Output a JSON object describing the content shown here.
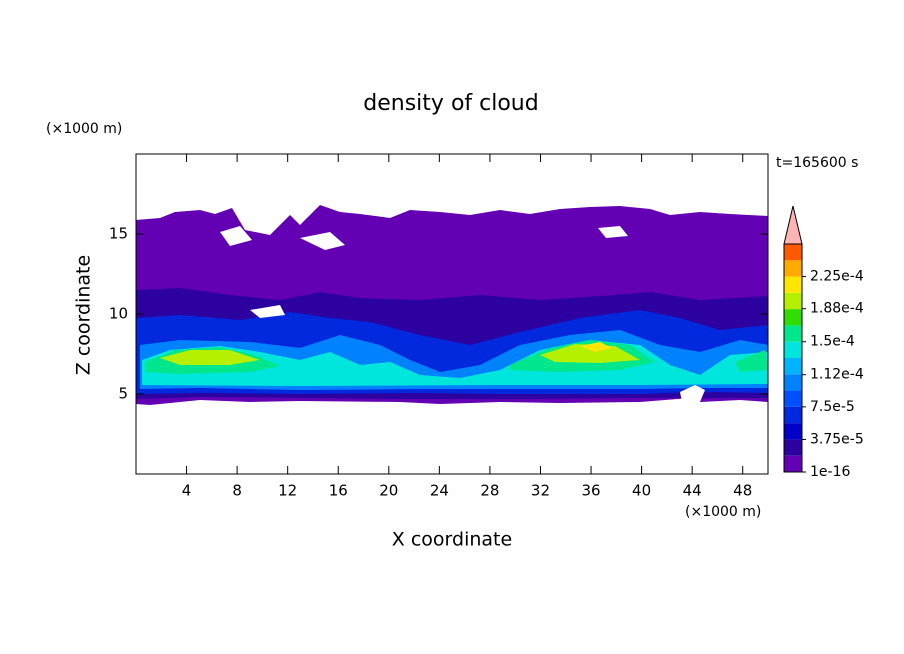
{
  "chart_data": {
    "type": "contour",
    "title": "density of cloud",
    "time_label": "t=165600 s",
    "xlabel": "X coordinate",
    "ylabel": "Z coordinate",
    "x_unit": "(×1000 m)",
    "y_unit": "(×1000 m)",
    "xlim": [
      0,
      50
    ],
    "ylim": [
      0,
      20
    ],
    "xticks": [
      4,
      8,
      12,
      16,
      20,
      24,
      28,
      32,
      36,
      40,
      44,
      48
    ],
    "yticks": [
      5,
      10,
      15
    ],
    "colorbar_lim": [
      1e-16,
      0.0002625
    ],
    "colorbar_ticks": [
      1e-16,
      {
        "value": 3.75e-05,
        "label": "3.75e-5"
      },
      {
        "value": 7.5e-05,
        "label": "7.5e-5"
      },
      {
        "value": 0.000112,
        "label": "1.12e-4"
      },
      {
        "value": 0.00015,
        "label": "1.5e-4"
      },
      {
        "value": 0.000188,
        "label": "1.88e-4"
      },
      {
        "value": 0.000225,
        "label": "2.25e-4"
      }
    ],
    "colorbar_colors": [
      "#6400b4",
      "#2d00a0",
      "#0000c8",
      "#0028dc",
      "#0050ff",
      "#0082ff",
      "#00b4ff",
      "#00e6dc",
      "#00e68c",
      "#32dc00",
      "#b4f000",
      "#ffe600",
      "#ffaa00",
      "#ff5a00"
    ],
    "extend_color": "#ffb4b4"
  }
}
